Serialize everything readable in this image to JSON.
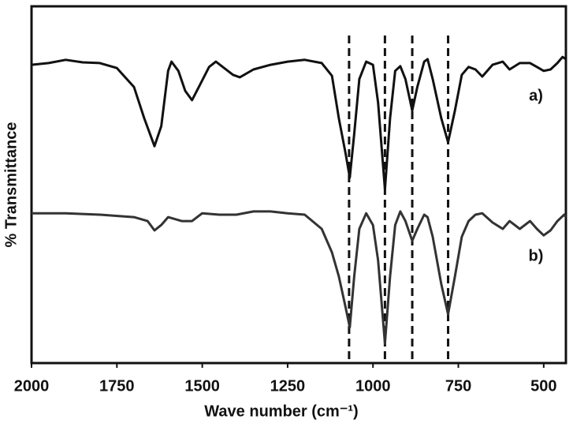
{
  "chart_data": {
    "type": "line",
    "xlabel": "Wave number (cm⁻¹)",
    "ylabel": "% Transmittance",
    "xlim": [
      2000,
      435
    ],
    "xticks": [
      2000,
      1750,
      1500,
      1250,
      1000,
      750,
      500
    ],
    "ylim": [
      0,
      100
    ],
    "reference_lines": [
      1070,
      965,
      885,
      780
    ],
    "annotations": [
      "a)",
      "b)"
    ],
    "series": [
      {
        "name": "a)",
        "color": "#111111",
        "x": [
          2000,
          1950,
          1900,
          1850,
          1800,
          1750,
          1700,
          1670,
          1640,
          1620,
          1600,
          1590,
          1570,
          1550,
          1530,
          1510,
          1480,
          1460,
          1440,
          1410,
          1390,
          1350,
          1300,
          1250,
          1200,
          1150,
          1120,
          1100,
          1080,
          1068,
          1055,
          1040,
          1020,
          1000,
          985,
          965,
          950,
          935,
          920,
          905,
          885,
          870,
          850,
          840,
          825,
          800,
          780,
          760,
          740,
          720,
          700,
          680,
          650,
          620,
          600,
          570,
          540,
          520,
          500,
          480,
          460,
          445,
          435
        ],
        "values": [
          83.6,
          84.1,
          85.0,
          84.3,
          84.1,
          82.7,
          77.4,
          68.6,
          60.8,
          66.4,
          81.9,
          84.5,
          81.9,
          76.3,
          73.7,
          77.4,
          83.0,
          84.5,
          83.0,
          80.8,
          80.1,
          82.3,
          83.6,
          84.5,
          85.0,
          84.1,
          80.5,
          68.6,
          58.6,
          52.0,
          64.2,
          79.6,
          84.5,
          83.6,
          73.0,
          48.7,
          68.6,
          81.9,
          83.2,
          79.6,
          70.8,
          77.4,
          84.5,
          85.2,
          79.6,
          68.6,
          61.9,
          70.8,
          80.8,
          83.0,
          82.3,
          80.3,
          83.6,
          84.5,
          82.3,
          84.1,
          84.1,
          83.0,
          81.9,
          82.3,
          84.1,
          85.8,
          85.2
        ]
      },
      {
        "name": "b)",
        "color": "#333333",
        "x": [
          2000,
          1900,
          1800,
          1700,
          1660,
          1640,
          1620,
          1600,
          1560,
          1530,
          1500,
          1450,
          1400,
          1350,
          1300,
          1250,
          1200,
          1150,
          1120,
          1100,
          1080,
          1068,
          1055,
          1040,
          1020,
          1000,
          985,
          965,
          950,
          935,
          920,
          905,
          885,
          870,
          850,
          840,
          825,
          800,
          780,
          760,
          740,
          720,
          700,
          680,
          650,
          620,
          600,
          570,
          540,
          520,
          500,
          480,
          460,
          440,
          435
        ],
        "values": [
          42.0,
          42.0,
          41.6,
          40.9,
          39.8,
          37.2,
          38.7,
          40.9,
          39.8,
          39.8,
          42.0,
          41.6,
          41.6,
          42.5,
          42.5,
          42.0,
          41.6,
          37.6,
          31.0,
          24.3,
          15.5,
          10.0,
          24.3,
          37.6,
          42.0,
          38.7,
          28.8,
          5.5,
          24.3,
          38.7,
          42.5,
          39.8,
          34.3,
          37.6,
          41.6,
          40.9,
          35.4,
          22.1,
          13.7,
          24.3,
          35.4,
          39.8,
          41.6,
          42.0,
          39.4,
          37.6,
          39.8,
          37.6,
          39.8,
          37.6,
          35.8,
          37.2,
          39.8,
          41.6,
          40.9
        ]
      }
    ]
  }
}
